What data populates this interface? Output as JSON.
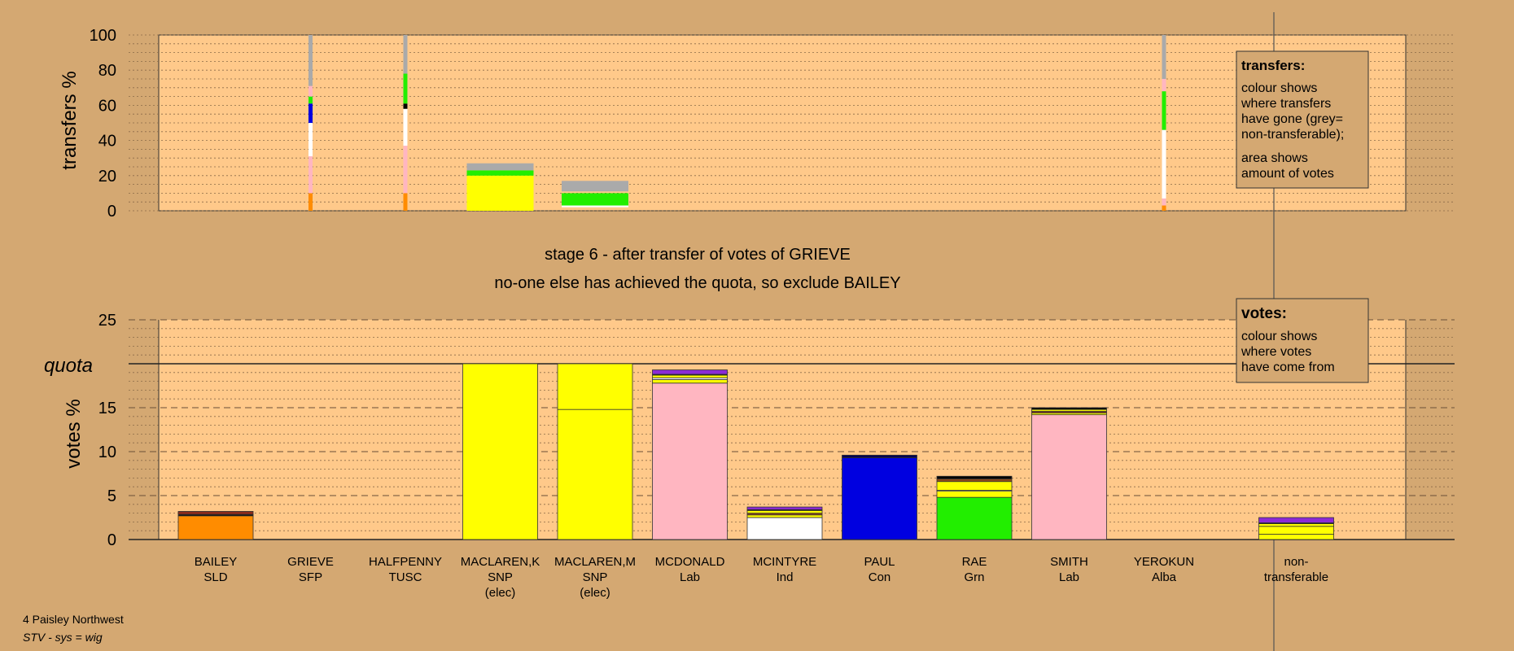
{
  "chart_data": [
    {
      "type": "bar",
      "ylabel": "transfers %",
      "ylim": [
        0,
        100
      ],
      "yticks": [
        "0",
        "20",
        "40",
        "60",
        "80",
        "100"
      ],
      "grid": true,
      "legend": {
        "title": "transfers:",
        "lines": [
          "colour shows",
          "where transfers",
          "have gone (grey=",
          "non-transferable);"
        ],
        "lines2": [
          "area shows",
          "amount of votes"
        ]
      },
      "columns": [
        {
          "index": 1,
          "kind": "thin",
          "segments": [
            {
              "color": "#ff8c00",
              "from": 0,
              "to": 10
            },
            {
              "color": "#ffb6c1",
              "from": 10,
              "to": 31
            },
            {
              "color": "#ffffff",
              "from": 31,
              "to": 50
            },
            {
              "color": "#0000e0",
              "from": 50,
              "to": 61
            },
            {
              "color": "#22ee00",
              "from": 61,
              "to": 65
            },
            {
              "color": "#ffb6c1",
              "from": 65,
              "to": 71
            },
            {
              "color": "#aaaaaa",
              "from": 71,
              "to": 100
            }
          ]
        },
        {
          "index": 2,
          "kind": "thin",
          "segments": [
            {
              "color": "#ff8c00",
              "from": 0,
              "to": 10
            },
            {
              "color": "#ffb6c1",
              "from": 10,
              "to": 37
            },
            {
              "color": "#ffffff",
              "from": 37,
              "to": 58
            },
            {
              "color": "#000000",
              "from": 58,
              "to": 61
            },
            {
              "color": "#22ee00",
              "from": 61,
              "to": 78
            },
            {
              "color": "#aaaaaa",
              "from": 78,
              "to": 100
            }
          ]
        },
        {
          "index": 3,
          "kind": "wide",
          "segments": [
            {
              "color": "#ffff00",
              "from": 0,
              "to": 20
            },
            {
              "color": "#22ee00",
              "from": 20,
              "to": 23
            },
            {
              "color": "#aaaaaa",
              "from": 23,
              "to": 27
            }
          ]
        },
        {
          "index": 4,
          "kind": "wide",
          "segments": [
            {
              "color": "#ffffff",
              "from": 2,
              "to": 3
            },
            {
              "color": "#22ee00",
              "from": 3,
              "to": 10
            },
            {
              "color": "#aaaaaa",
              "from": 11,
              "to": 17
            }
          ]
        },
        {
          "index": 10,
          "kind": "thin",
          "segments": [
            {
              "color": "#ff8c00",
              "from": 0,
              "to": 3
            },
            {
              "color": "#ffb6c1",
              "from": 3,
              "to": 7
            },
            {
              "color": "#ffffff",
              "from": 7,
              "to": 46
            },
            {
              "color": "#22ee00",
              "from": 46,
              "to": 68
            },
            {
              "color": "#ffb6c1",
              "from": 68,
              "to": 75
            },
            {
              "color": "#aaaaaa",
              "from": 75,
              "to": 100
            }
          ]
        }
      ]
    },
    {
      "type": "bar",
      "ylabel": "votes %",
      "ylim": [
        0,
        25
      ],
      "yticks": [
        "0",
        "5",
        "10",
        "15",
        "20",
        "25"
      ],
      "quota": 20,
      "quota_label": "quota",
      "grid": true,
      "legend": {
        "title": "votes:",
        "lines": [
          "colour shows",
          "where votes",
          "have come from"
        ]
      },
      "categories": [
        {
          "name": "BAILEY",
          "party": "SLD",
          "note": ""
        },
        {
          "name": "GRIEVE",
          "party": "SFP",
          "note": ""
        },
        {
          "name": "HALFPENNY",
          "party": "TUSC",
          "note": ""
        },
        {
          "name": "MACLAREN,K",
          "party": "SNP",
          "note": "(elec)"
        },
        {
          "name": "MACLAREN,M",
          "party": "SNP",
          "note": "(elec)"
        },
        {
          "name": "MCDONALD",
          "party": "Lab",
          "note": ""
        },
        {
          "name": "MCINTYRE",
          "party": "Ind",
          "note": ""
        },
        {
          "name": "PAUL",
          "party": "Con",
          "note": ""
        },
        {
          "name": "RAE",
          "party": "Grn",
          "note": ""
        },
        {
          "name": "SMITH",
          "party": "Lab",
          "note": ""
        },
        {
          "name": "YEROKUN",
          "party": "Alba",
          "note": ""
        },
        {
          "name": "non-",
          "party": "transferable",
          "note": ""
        }
      ],
      "bars": [
        {
          "index": 0,
          "segments": [
            {
              "color": "#ff8c00",
              "from": 0,
              "to": 2.7
            },
            {
              "color": "#000000",
              "from": 2.7,
              "to": 2.85
            },
            {
              "color": "#8b2a1a",
              "from": 2.85,
              "to": 3.2
            }
          ]
        },
        {
          "index": 3,
          "segments": [
            {
              "color": "#ffff00",
              "from": 0,
              "to": 20
            }
          ]
        },
        {
          "index": 4,
          "segments": [
            {
              "color": "#ffff00",
              "from": 0,
              "to": 14.8
            },
            {
              "color": "#ffff00",
              "from": 14.8,
              "to": 20
            }
          ]
        },
        {
          "index": 5,
          "segments": [
            {
              "color": "#ffb6c1",
              "from": 0,
              "to": 17.8
            },
            {
              "color": "#ffff00",
              "from": 17.8,
              "to": 18.2
            },
            {
              "color": "#ffffff",
              "from": 18.2,
              "to": 18.4
            },
            {
              "color": "#ffff00",
              "from": 18.4,
              "to": 18.7
            },
            {
              "color": "#000000",
              "from": 18.7,
              "to": 18.8
            },
            {
              "color": "#8b2ad6",
              "from": 18.8,
              "to": 19.3
            }
          ]
        },
        {
          "index": 6,
          "segments": [
            {
              "color": "#ffffff",
              "from": 0,
              "to": 2.5
            },
            {
              "color": "#ffff00",
              "from": 2.5,
              "to": 2.8
            },
            {
              "color": "#8b4a1a",
              "from": 2.8,
              "to": 3.0
            },
            {
              "color": "#ffff00",
              "from": 3.0,
              "to": 3.3
            },
            {
              "color": "#000000",
              "from": 3.3,
              "to": 3.4
            },
            {
              "color": "#8b2ad6",
              "from": 3.4,
              "to": 3.7
            }
          ]
        },
        {
          "index": 7,
          "segments": [
            {
              "color": "#0000e0",
              "from": 0,
              "to": 9.3
            },
            {
              "color": "#000050",
              "from": 9.3,
              "to": 9.6
            }
          ]
        },
        {
          "index": 8,
          "segments": [
            {
              "color": "#22ee00",
              "from": 0,
              "to": 4.8
            },
            {
              "color": "#ffff00",
              "from": 4.8,
              "to": 5.5
            },
            {
              "color": "#ffffff",
              "from": 5.5,
              "to": 5.6
            },
            {
              "color": "#ffff00",
              "from": 5.6,
              "to": 6.6
            },
            {
              "color": "#8b4a1a",
              "from": 6.6,
              "to": 6.9
            },
            {
              "color": "#000000",
              "from": 6.9,
              "to": 7.2
            }
          ]
        },
        {
          "index": 9,
          "segments": [
            {
              "color": "#ffb6c1",
              "from": 0,
              "to": 14.2
            },
            {
              "color": "#ffff00",
              "from": 14.2,
              "to": 14.4
            },
            {
              "color": "#8b4a1a",
              "from": 14.4,
              "to": 14.6
            },
            {
              "color": "#ffff00",
              "from": 14.6,
              "to": 14.8
            },
            {
              "color": "#000000",
              "from": 14.8,
              "to": 15.0
            }
          ]
        },
        {
          "index": 11,
          "segments": [
            {
              "color": "#ffff00",
              "from": 0,
              "to": 0.6
            },
            {
              "color": "#ffff00",
              "from": 0.6,
              "to": 1.5
            },
            {
              "color": "#ffff00",
              "from": 1.5,
              "to": 1.8
            },
            {
              "color": "#000000",
              "from": 1.8,
              "to": 1.9
            },
            {
              "color": "#8b2ad6",
              "from": 1.9,
              "to": 2.5
            }
          ]
        }
      ]
    }
  ],
  "caption": {
    "line1": "stage 6 - after transfer of votes of GRIEVE",
    "line2": "no-one else has achieved the quota, so exclude BAILEY"
  },
  "footer": {
    "constituency": "4 Paisley Northwest",
    "system": "STV - sys = wig"
  },
  "colors": {
    "background": "#d4a872",
    "plot_area": "#ffc98a",
    "grey": "#aaaaaa"
  }
}
